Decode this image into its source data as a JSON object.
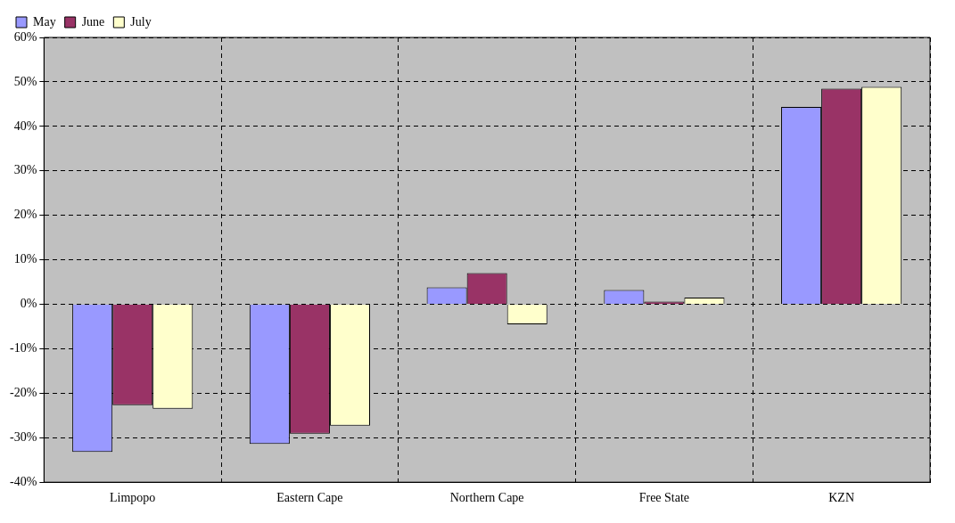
{
  "chart_data": {
    "type": "bar",
    "categories": [
      "Limpopo",
      "Eastern Cape",
      "Northern Cape",
      "Free State",
      "KZN"
    ],
    "series": [
      {
        "name": "May",
        "color": "#9999ff",
        "values": [
          -33.2,
          -31.4,
          3.8,
          3.2,
          44.4
        ]
      },
      {
        "name": "June",
        "color": "#993366",
        "values": [
          -22.7,
          -29.1,
          7.0,
          0.6,
          48.5
        ]
      },
      {
        "name": "July",
        "color": "#ffffcc",
        "values": [
          -23.5,
          -27.3,
          -4.5,
          1.5,
          48.9
        ]
      }
    ],
    "ylim": [
      -40,
      60
    ],
    "yticks": [
      {
        "value": -40,
        "label": "-40%"
      },
      {
        "value": -30,
        "label": "-30%"
      },
      {
        "value": -20,
        "label": "-20%"
      },
      {
        "value": -10,
        "label": "-10%"
      },
      {
        "value": 0,
        "label": "0%"
      },
      {
        "value": 10,
        "label": "10%"
      },
      {
        "value": 20,
        "label": "20%"
      },
      {
        "value": 30,
        "label": "30%"
      },
      {
        "value": 40,
        "label": "40%"
      },
      {
        "value": 50,
        "label": "50%"
      },
      {
        "value": 60,
        "label": "60%"
      }
    ],
    "grid": true,
    "legend": "top left"
  }
}
